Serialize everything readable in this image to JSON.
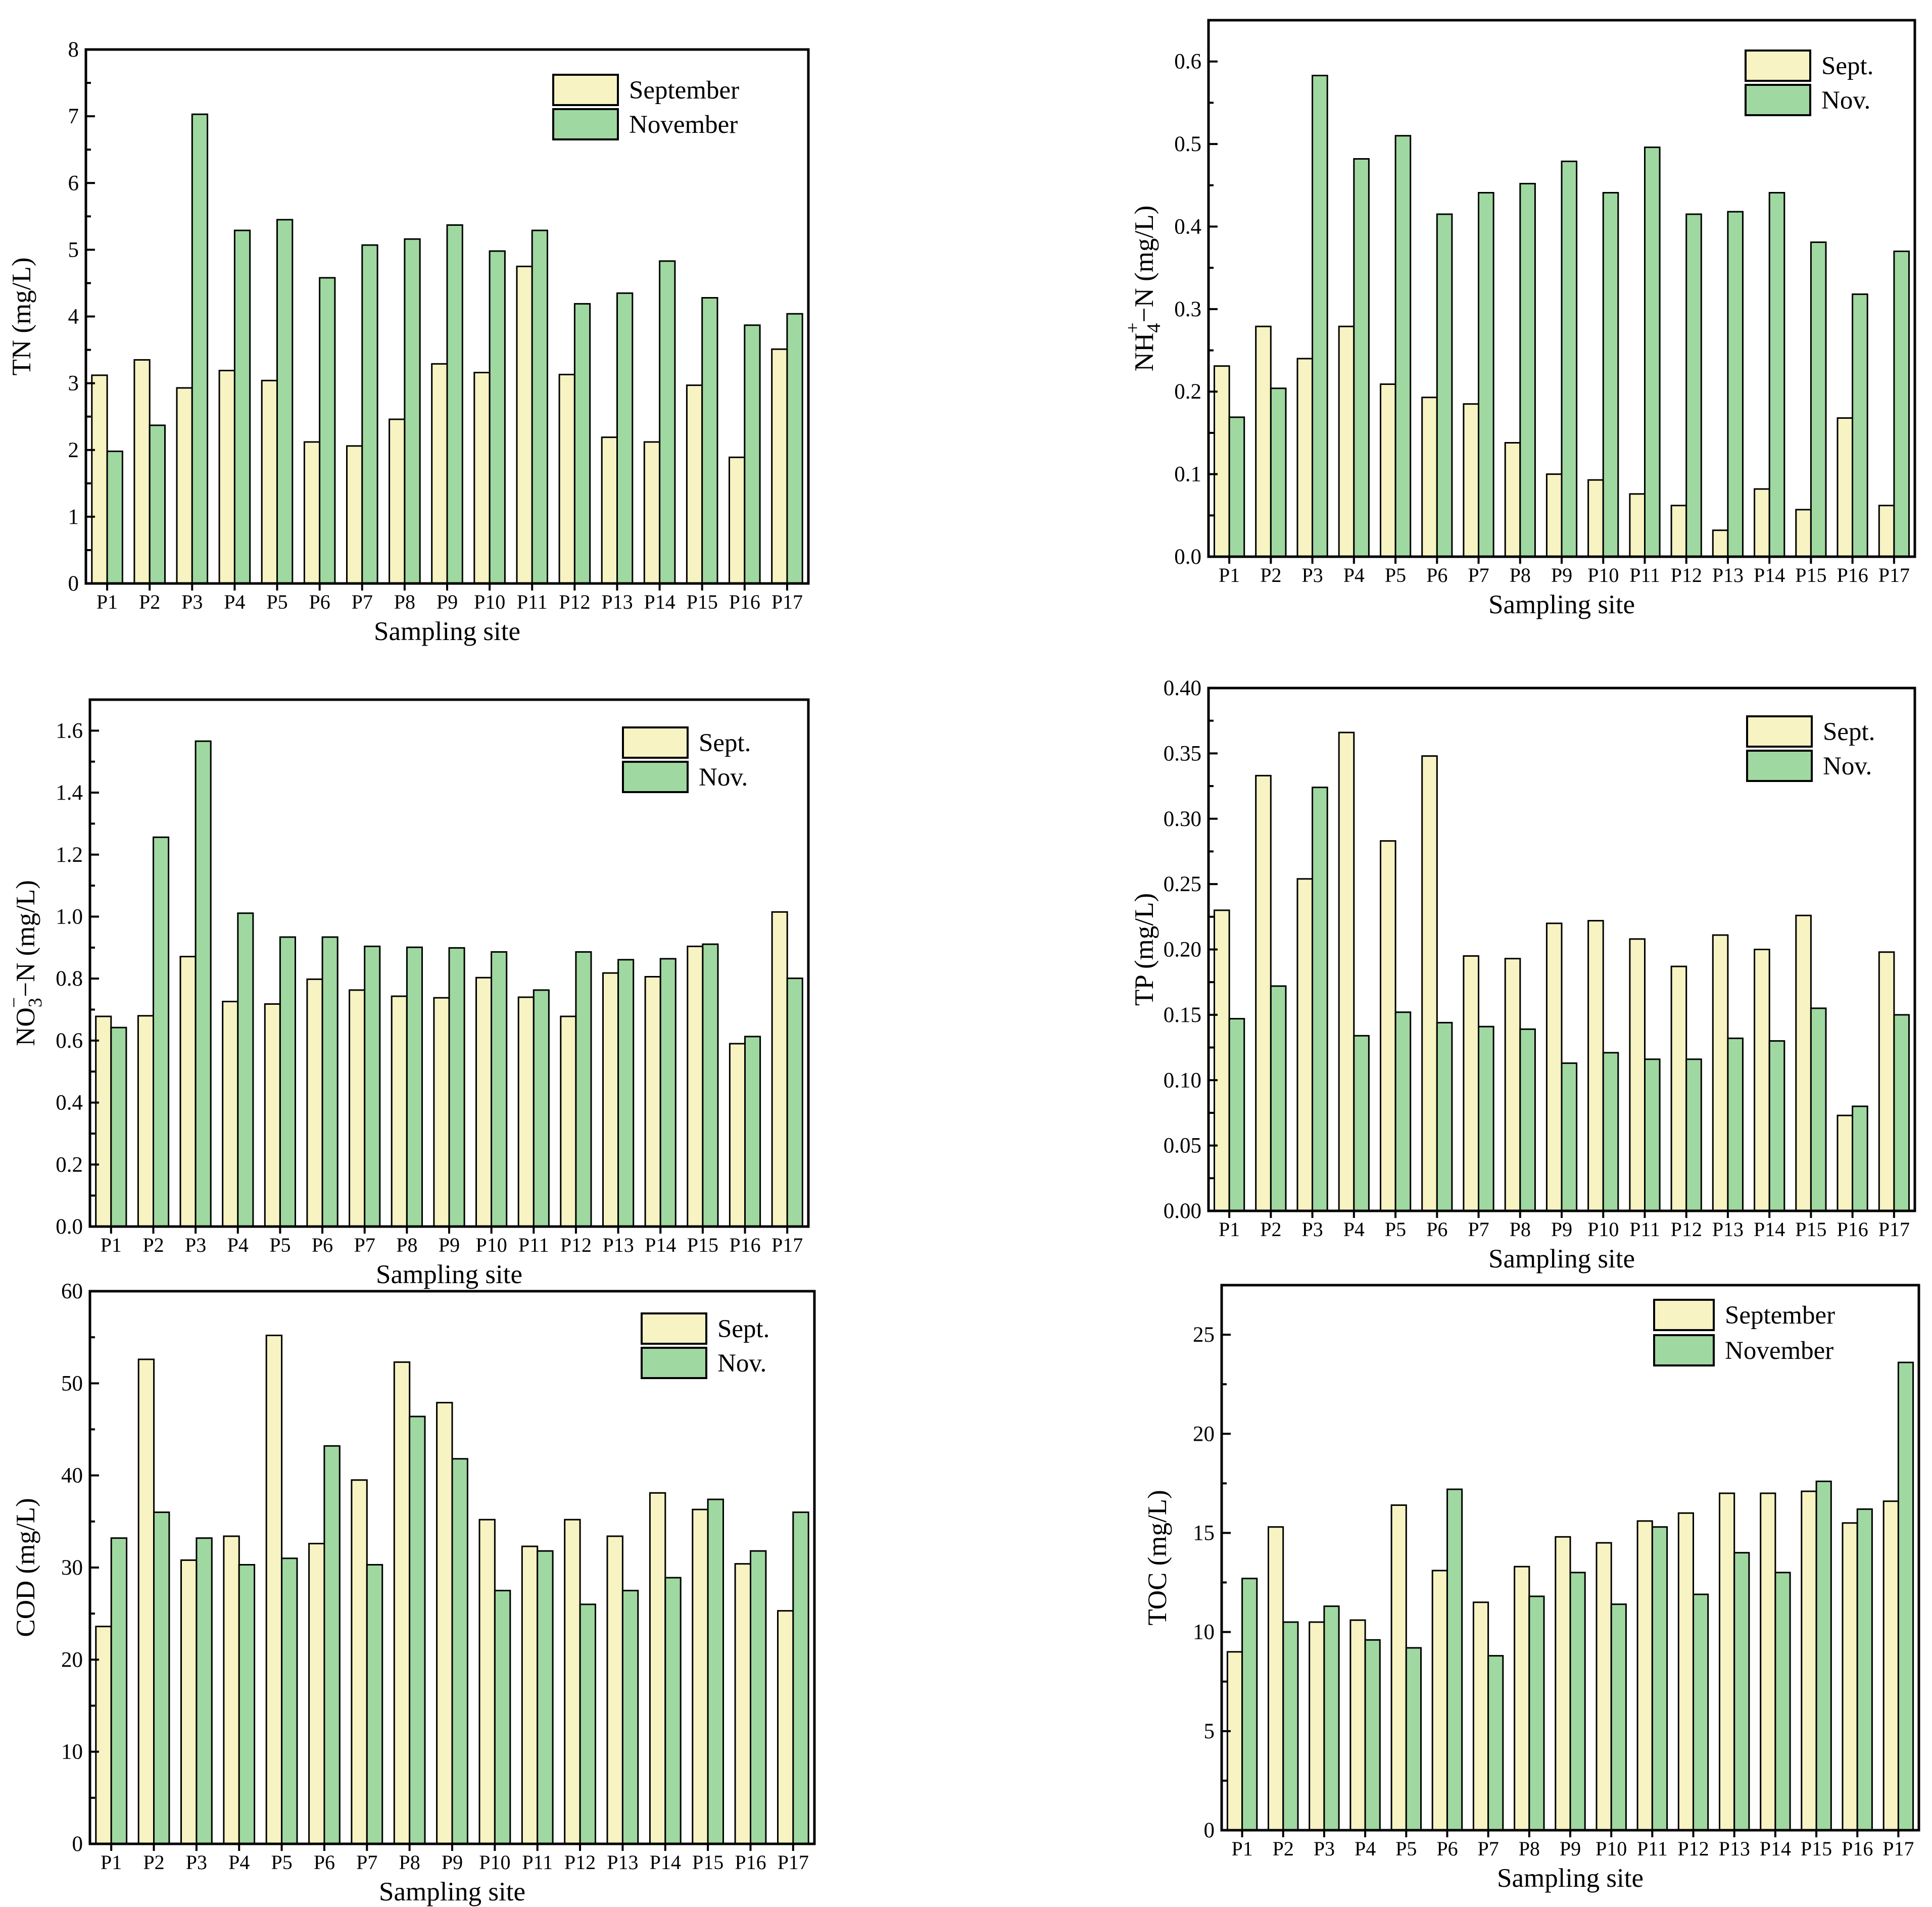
{
  "colors": {
    "september": "#f7f3c2",
    "november": "#9fd8a0"
  },
  "chart_data": [
    {
      "id": "tn",
      "type": "bar",
      "ylabel": "TN (mg/L)",
      "xlabel": "Sampling site",
      "categories": [
        "P1",
        "P2",
        "P3",
        "P4",
        "P5",
        "P6",
        "P7",
        "P8",
        "P9",
        "P10",
        "P11",
        "P12",
        "P13",
        "P14",
        "P15",
        "P16",
        "P17"
      ],
      "ylim": [
        0,
        8
      ],
      "major_ticks": [
        0,
        1,
        2,
        3,
        4,
        5,
        6,
        7,
        8
      ],
      "tick_labels": [
        "0",
        "1",
        "2",
        "3",
        "4",
        "5",
        "6",
        "7",
        "8"
      ],
      "minor_ticks": true,
      "legend_position": "top-right",
      "series": [
        {
          "name": "September",
          "values": [
            3.12,
            3.35,
            2.93,
            3.19,
            3.04,
            2.12,
            2.06,
            2.46,
            3.29,
            3.16,
            4.75,
            3.13,
            2.19,
            2.12,
            2.97,
            1.89,
            3.51
          ]
        },
        {
          "name": "November",
          "values": [
            1.98,
            2.37,
            7.03,
            5.29,
            5.45,
            4.58,
            5.07,
            5.16,
            5.37,
            4.98,
            5.29,
            4.19,
            4.35,
            4.83,
            4.28,
            3.87,
            4.04
          ]
        }
      ]
    },
    {
      "id": "nh4",
      "type": "bar",
      "ylabel": "NH4+-N (mg/L)",
      "ylabel_parts": [
        "NH",
        "4",
        "+",
        "−N (mg/L)"
      ],
      "xlabel": "Sampling site",
      "categories": [
        "P1",
        "P2",
        "P3",
        "P4",
        "P5",
        "P6",
        "P7",
        "P8",
        "P9",
        "P10",
        "P11",
        "P12",
        "P13",
        "P14",
        "P15",
        "P16",
        "P17"
      ],
      "ylim": [
        0,
        0.65
      ],
      "major_ticks": [
        0,
        0.1,
        0.2,
        0.3,
        0.4,
        0.5,
        0.6
      ],
      "tick_labels": [
        "0.0",
        "0.1",
        "0.2",
        "0.3",
        "0.4",
        "0.5",
        "0.6"
      ],
      "minor_ticks": true,
      "legend_position": "top-right",
      "series": [
        {
          "name": "Sept.",
          "values": [
            0.231,
            0.279,
            0.24,
            0.279,
            0.209,
            0.193,
            0.185,
            0.138,
            0.1,
            0.093,
            0.076,
            0.062,
            0.032,
            0.082,
            0.057,
            0.168,
            0.062
          ]
        },
        {
          "name": "Nov.",
          "values": [
            0.169,
            0.204,
            0.583,
            0.482,
            0.51,
            0.415,
            0.441,
            0.452,
            0.479,
            0.441,
            0.496,
            0.415,
            0.418,
            0.441,
            0.381,
            0.318,
            0.37
          ]
        }
      ]
    },
    {
      "id": "no3",
      "type": "bar",
      "ylabel": "NO3−-N (mg/L)",
      "ylabel_parts": [
        "NO",
        "3",
        "−",
        "−N (mg/L)"
      ],
      "xlabel": "Sampling site",
      "categories": [
        "P1",
        "P2",
        "P3",
        "P4",
        "P5",
        "P6",
        "P7",
        "P8",
        "P9",
        "P10",
        "P11",
        "P12",
        "P13",
        "P14",
        "P15",
        "P16",
        "P17"
      ],
      "ylim": [
        0,
        1.7
      ],
      "major_ticks": [
        0,
        0.2,
        0.4,
        0.6,
        0.8,
        1.0,
        1.2,
        1.4,
        1.6
      ],
      "tick_labels": [
        "0.0",
        "0.2",
        "0.4",
        "0.6",
        "0.8",
        "1.0",
        "1.2",
        "1.4",
        "1.6"
      ],
      "minor_ticks": true,
      "legend_position": "top-right",
      "series": [
        {
          "name": "Sept.",
          "values": [
            0.678,
            0.68,
            0.871,
            0.726,
            0.718,
            0.798,
            0.763,
            0.743,
            0.738,
            0.803,
            0.74,
            0.678,
            0.818,
            0.806,
            0.904,
            0.59,
            1.015
          ]
        },
        {
          "name": "Nov.",
          "values": [
            0.642,
            1.256,
            1.566,
            1.011,
            0.934,
            0.934,
            0.904,
            0.901,
            0.899,
            0.886,
            0.763,
            0.886,
            0.861,
            0.864,
            0.911,
            0.613,
            0.801
          ]
        }
      ]
    },
    {
      "id": "tp",
      "type": "bar",
      "ylabel": "TP (mg/L)",
      "xlabel": "Sampling site",
      "categories": [
        "P1",
        "P2",
        "P3",
        "P4",
        "P5",
        "P6",
        "P7",
        "P8",
        "P9",
        "P10",
        "P11",
        "P12",
        "P13",
        "P14",
        "P15",
        "P16",
        "P17"
      ],
      "ylim": [
        0,
        0.4
      ],
      "major_ticks": [
        0,
        0.05,
        0.1,
        0.15,
        0.2,
        0.25,
        0.3,
        0.35,
        0.4
      ],
      "tick_labels": [
        "0.00",
        "0.05",
        "0.10",
        "0.15",
        "0.20",
        "0.25",
        "0.30",
        "0.35",
        "0.40"
      ],
      "minor_ticks": true,
      "legend_position": "top-right",
      "series": [
        {
          "name": "Sept.",
          "values": [
            0.23,
            0.333,
            0.254,
            0.366,
            0.283,
            0.348,
            0.195,
            0.193,
            0.22,
            0.222,
            0.208,
            0.187,
            0.211,
            0.2,
            0.226,
            0.073,
            0.198
          ]
        },
        {
          "name": "Nov.",
          "values": [
            0.147,
            0.172,
            0.324,
            0.134,
            0.152,
            0.144,
            0.141,
            0.139,
            0.113,
            0.121,
            0.116,
            0.116,
            0.132,
            0.13,
            0.155,
            0.08,
            0.15
          ]
        }
      ]
    },
    {
      "id": "cod",
      "type": "bar",
      "ylabel": "COD (mg/L)",
      "xlabel": "Sampling site",
      "categories": [
        "P1",
        "P2",
        "P3",
        "P4",
        "P5",
        "P6",
        "P7",
        "P8",
        "P9",
        "P10",
        "P11",
        "P12",
        "P13",
        "P14",
        "P15",
        "P16",
        "P17"
      ],
      "ylim": [
        0,
        60
      ],
      "major_ticks": [
        0,
        10,
        20,
        30,
        40,
        50,
        60
      ],
      "tick_labels": [
        "0",
        "10",
        "20",
        "30",
        "40",
        "50",
        "60"
      ],
      "minor_ticks": true,
      "legend_position": "top-right",
      "series": [
        {
          "name": "Sept.",
          "values": [
            23.6,
            52.6,
            30.8,
            33.4,
            55.2,
            32.6,
            39.5,
            52.3,
            47.9,
            35.2,
            32.3,
            35.2,
            33.4,
            38.1,
            36.3,
            30.4,
            25.3
          ]
        },
        {
          "name": "Nov.",
          "values": [
            33.2,
            36.0,
            33.2,
            30.3,
            31.0,
            43.2,
            30.3,
            46.4,
            41.8,
            27.5,
            31.8,
            26.0,
            27.5,
            28.9,
            37.4,
            31.8,
            36.0
          ]
        }
      ]
    },
    {
      "id": "toc",
      "type": "bar",
      "ylabel": "TOC (mg/L)",
      "xlabel": "Sampling site",
      "categories": [
        "P1",
        "P2",
        "P3",
        "P4",
        "P5",
        "P6",
        "P7",
        "P8",
        "P9",
        "P10",
        "P11",
        "P12",
        "P13",
        "P14",
        "P15",
        "P16",
        "P17"
      ],
      "ylim": [
        0,
        27.5
      ],
      "major_ticks": [
        0,
        5,
        10,
        15,
        20,
        25
      ],
      "tick_labels": [
        "0",
        "5",
        "10",
        "15",
        "20",
        "25"
      ],
      "minor_ticks": true,
      "legend_position": "top-right",
      "series": [
        {
          "name": "September",
          "values": [
            9.0,
            15.3,
            10.5,
            10.6,
            16.4,
            13.1,
            11.5,
            13.3,
            14.8,
            14.5,
            15.6,
            16.0,
            17.0,
            17.0,
            17.1,
            15.5,
            16.6
          ]
        },
        {
          "name": "November",
          "values": [
            12.7,
            10.5,
            11.3,
            9.6,
            9.2,
            17.2,
            8.8,
            11.8,
            13.0,
            11.4,
            15.3,
            11.9,
            14.0,
            13.0,
            17.6,
            16.2,
            23.6
          ]
        }
      ]
    }
  ]
}
